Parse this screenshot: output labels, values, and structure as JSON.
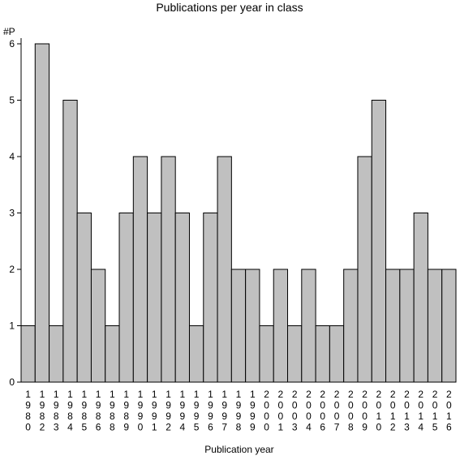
{
  "chart_data": {
    "type": "bar",
    "title": "Publications per year in class",
    "ylabel": "#P",
    "xlabel": "Publication year",
    "categories": [
      "1980",
      "1982",
      "1983",
      "1984",
      "1985",
      "1986",
      "1988",
      "1989",
      "1990",
      "1991",
      "1992",
      "1994",
      "1995",
      "1996",
      "1997",
      "1998",
      "1999",
      "2000",
      "2001",
      "2003",
      "2004",
      "2006",
      "2007",
      "2008",
      "2009",
      "2010",
      "2012",
      "2013",
      "2014",
      "2015",
      "2016"
    ],
    "values": [
      1,
      6,
      1,
      5,
      3,
      2,
      1,
      3,
      4,
      3,
      4,
      3,
      1,
      3,
      4,
      2,
      2,
      1,
      2,
      1,
      2,
      1,
      1,
      2,
      4,
      5,
      2,
      2,
      3,
      2,
      2
    ],
    "ylim": [
      0,
      6
    ],
    "yticks": [
      0,
      1,
      2,
      3,
      4,
      5,
      6
    ],
    "grid": false,
    "bar_color": "#c0c0c0",
    "edge_color": "#000000"
  }
}
